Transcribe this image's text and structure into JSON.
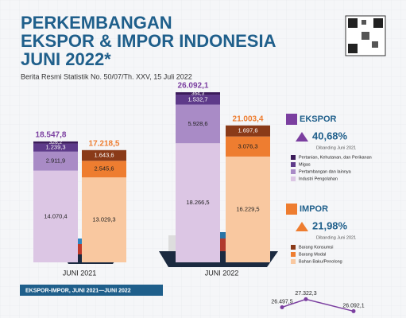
{
  "chart_data": {
    "type": "bar",
    "title": [
      "PERKEMBANGAN",
      "EKSPOR & IMPOR INDONESIA",
      "JUNI 2022*"
    ],
    "subtitle": "Berita Resmi Statistik No. 50/07/Th. XXV, 15 Juli 2022",
    "categories": [
      "JUNI 2021",
      "JUNI 2022"
    ],
    "ylim": [
      0,
      30000
    ],
    "series": [
      {
        "name": "Industri Pengolahan",
        "stack": "ekspor",
        "color": "#dcc6e4",
        "values": [
          14070.4,
          18266.5
        ],
        "value_labels": [
          "14.070,4",
          "18.266,5"
        ]
      },
      {
        "name": "Pertambangan dan lainnya",
        "stack": "ekspor",
        "color": "#a98bc6",
        "values": [
          2911.9,
          5928.6
        ],
        "value_labels": [
          "2.911,9",
          "5.928,6"
        ]
      },
      {
        "name": "Migas",
        "stack": "ekspor",
        "color": "#5e3a8a",
        "values": [
          1239.3,
          1532.7
        ],
        "value_labels": [
          "1.239,3",
          "1.532,7"
        ]
      },
      {
        "name": "Pertanian, Kehutanan, dan Perikanan",
        "stack": "ekspor",
        "color": "#3b1b5a",
        "values": [
          326.2,
          364.3
        ],
        "value_labels": [
          "326,2",
          "364,3"
        ]
      },
      {
        "name": "Bahan Baku/Penolong",
        "stack": "impor",
        "color": "#f9c8a0",
        "values": [
          13029.3,
          16229.5
        ],
        "value_labels": [
          "13.029,3",
          "16.229,5"
        ]
      },
      {
        "name": "Barang Modal",
        "stack": "impor",
        "color": "#ee7d30",
        "values": [
          2545.6,
          3076.3
        ],
        "value_labels": [
          "2.545,6",
          "3.076,3"
        ]
      },
      {
        "name": "Barang Konsumsi",
        "stack": "impor",
        "color": "#8a3a18",
        "values": [
          1643.6,
          1697.6
        ],
        "value_labels": [
          "1.643,6",
          "1.697,6"
        ]
      }
    ],
    "totals": [
      {
        "stack": "ekspor",
        "color": "#7b3fa0",
        "values": [
          18547.8,
          26092.1
        ],
        "value_labels": [
          "18.547,8",
          "26.092,1"
        ]
      },
      {
        "stack": "impor",
        "color": "#ee7d30",
        "values": [
          17218.5,
          21003.4
        ],
        "value_labels": [
          "17.218,5",
          "21.003,4"
        ]
      }
    ],
    "panels": [
      {
        "stack": "ekspor",
        "label": "EKSPOR",
        "change": "40,68%",
        "note": "Dibanding Juni 2021",
        "color": "#7b3fa0"
      },
      {
        "stack": "impor",
        "label": "IMPOR",
        "change": "21,98%",
        "note": "Dibanding Juni 2021",
        "color": "#ee7d30"
      }
    ],
    "mini_chart": {
      "type": "line",
      "title": "EKSPOR-IMPOR, JUNI 2021—JUNI 2022",
      "color": "#7b3fa0",
      "ylim": [
        25800,
        27600
      ],
      "values": [
        26497.5,
        27322.3,
        26092.1
      ],
      "value_labels": [
        "26.497,5",
        "27.322,3",
        "26.092,1"
      ]
    }
  }
}
